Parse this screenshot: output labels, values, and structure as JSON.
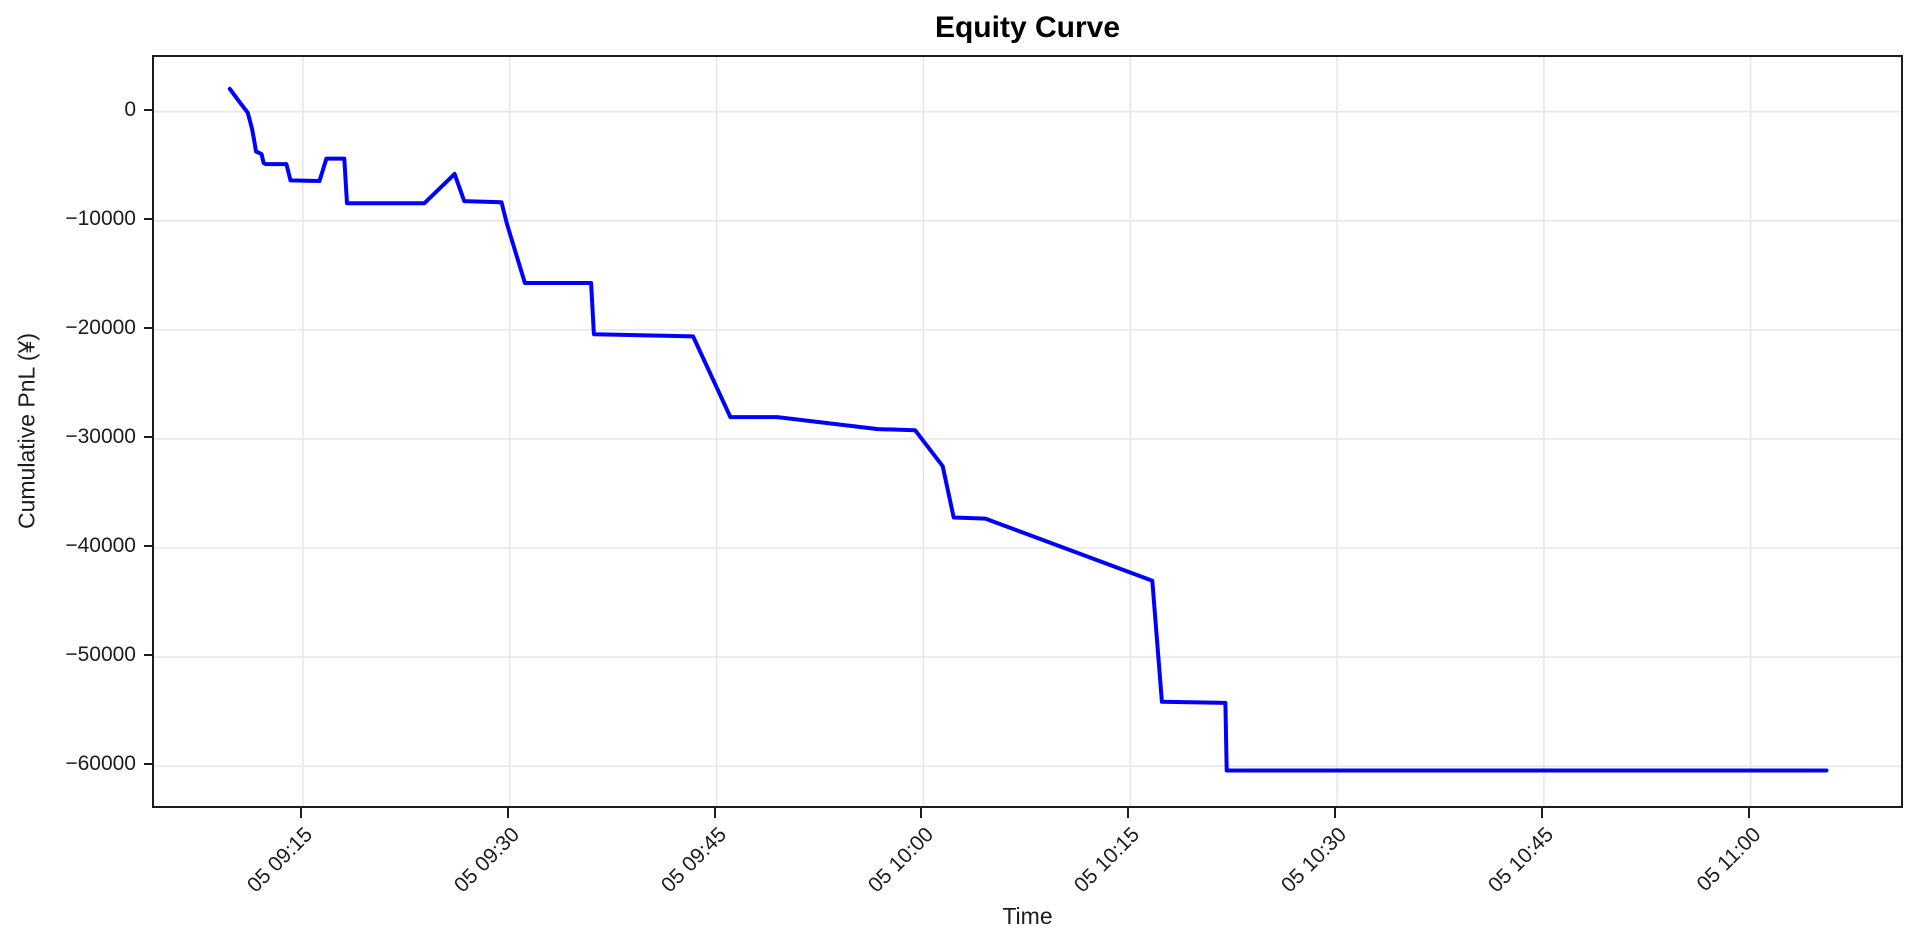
{
  "figure": {
    "title": "Equity Curve",
    "xlabel": "Time",
    "ylabel": "Cumulative PnL (¥)"
  },
  "chart_data": {
    "type": "line",
    "title": "Equity Curve",
    "xlabel": "Time",
    "ylabel": "Cumulative PnL (¥)",
    "series_name": "Cumulative PnL",
    "grid": true,
    "legend": "none",
    "line_color": "#0000ff",
    "x_unit": "minutes since midnight, day 05",
    "xlim": [
      544.2,
      670.9
    ],
    "ylim": [
      -63650,
      5015
    ],
    "x_ticks": [
      {
        "t": 555,
        "label": "05 09:15"
      },
      {
        "t": 570,
        "label": "05 09:30"
      },
      {
        "t": 585,
        "label": "05 09:45"
      },
      {
        "t": 600,
        "label": "05 10:00"
      },
      {
        "t": 615,
        "label": "05 10:15"
      },
      {
        "t": 630,
        "label": "05 10:30"
      },
      {
        "t": 645,
        "label": "05 10:45"
      },
      {
        "t": 660,
        "label": "05 11:00"
      }
    ],
    "y_ticks": [
      {
        "v": 0,
        "label": "0"
      },
      {
        "v": -10000,
        "label": "−10000"
      },
      {
        "v": -20000,
        "label": "−20000"
      },
      {
        "v": -30000,
        "label": "−30000"
      },
      {
        "v": -40000,
        "label": "−40000"
      },
      {
        "v": -50000,
        "label": "−50000"
      },
      {
        "v": -60000,
        "label": "−60000"
      }
    ],
    "points": [
      [
        549.7,
        2100
      ],
      [
        550.4,
        900
      ],
      [
        551.0,
        -100
      ],
      [
        551.3,
        -1500
      ],
      [
        551.5,
        -2900
      ],
      [
        551.6,
        -3650
      ],
      [
        551.7,
        -3700
      ],
      [
        552.0,
        -3900
      ],
      [
        552.15,
        -4700
      ],
      [
        552.3,
        -4800
      ],
      [
        553.8,
        -4800
      ],
      [
        554.1,
        -6300
      ],
      [
        556.2,
        -6350
      ],
      [
        556.7,
        -4300
      ],
      [
        558.0,
        -4300
      ],
      [
        558.2,
        -8400
      ],
      [
        563.8,
        -8400
      ],
      [
        566.0,
        -5700
      ],
      [
        566.7,
        -8200
      ],
      [
        569.4,
        -8300
      ],
      [
        569.8,
        -10300
      ],
      [
        571.1,
        -15700
      ],
      [
        575.9,
        -15700
      ],
      [
        576.1,
        -20400
      ],
      [
        583.3,
        -20600
      ],
      [
        586.0,
        -28000
      ],
      [
        589.4,
        -28000
      ],
      [
        596.7,
        -29100
      ],
      [
        599.4,
        -29200
      ],
      [
        601.4,
        -32500
      ],
      [
        602.2,
        -37200
      ],
      [
        604.5,
        -37300
      ],
      [
        616.6,
        -43000
      ],
      [
        617.3,
        -54100
      ],
      [
        621.9,
        -54200
      ],
      [
        622.0,
        -60400
      ],
      [
        665.5,
        -60400
      ]
    ]
  }
}
